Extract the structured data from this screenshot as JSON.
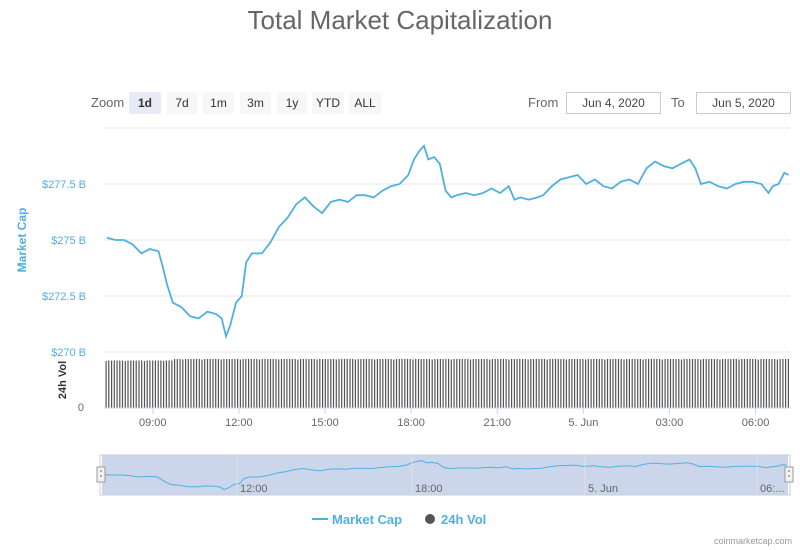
{
  "title": "Total Market Capitalization",
  "zoom": {
    "label": "Zoom",
    "buttons": [
      "1d",
      "7d",
      "1m",
      "3m",
      "1y",
      "YTD",
      "ALL"
    ],
    "active": "1d"
  },
  "range": {
    "from_label": "From",
    "from_value": "Jun 4, 2020",
    "to_label": "To",
    "to_value": "Jun 5, 2020"
  },
  "colors": {
    "line": "#4fb0e0",
    "volume_bar": "#555555",
    "navigator_fill": "#c3cfe8"
  },
  "legend": [
    {
      "label": "Market Cap",
      "icon": "line"
    },
    {
      "label": "24h Vol",
      "icon": "circle"
    }
  ],
  "navigator_labels": [
    "12:00",
    "18:00",
    "5. Jun",
    "06:..."
  ],
  "footer": "coinmarketcap.com",
  "chart_data": {
    "type": "line",
    "title": "Total Market Capitalization",
    "ylabel": "Market Cap",
    "ylabel_volume": "24h Vol",
    "y_unit": "B (USD)",
    "ylim": [
      270,
      280
    ],
    "yticks": [
      {
        "value": 270,
        "label": "$270 B"
      },
      {
        "value": 272.5,
        "label": "$272.5 B"
      },
      {
        "value": 275,
        "label": "$275 B"
      },
      {
        "value": 277.5,
        "label": "$277.5 B"
      }
    ],
    "volume_tick": "0",
    "x_unit": "hours since Jun 4 2020 00:00",
    "xlim": [
      7.3,
      31.2
    ],
    "xticks": [
      {
        "value": 9,
        "label": "09:00"
      },
      {
        "value": 12,
        "label": "12:00"
      },
      {
        "value": 15,
        "label": "15:00"
      },
      {
        "value": 18,
        "label": "18:00"
      },
      {
        "value": 21,
        "label": "21:00"
      },
      {
        "value": 24,
        "label": "5. Jun"
      },
      {
        "value": 27,
        "label": "03:00"
      },
      {
        "value": 30,
        "label": "06:00"
      }
    ],
    "series": [
      {
        "name": "Market Cap",
        "points": [
          [
            7.4,
            275.1
          ],
          [
            7.7,
            275.0
          ],
          [
            8.0,
            275.0
          ],
          [
            8.3,
            274.8
          ],
          [
            8.6,
            274.4
          ],
          [
            8.9,
            274.6
          ],
          [
            9.2,
            274.5
          ],
          [
            9.35,
            273.8
          ],
          [
            9.5,
            273.0
          ],
          [
            9.7,
            272.2
          ],
          [
            10.0,
            272.0
          ],
          [
            10.3,
            271.6
          ],
          [
            10.6,
            271.5
          ],
          [
            10.9,
            271.8
          ],
          [
            11.2,
            271.7
          ],
          [
            11.4,
            271.5
          ],
          [
            11.55,
            270.7
          ],
          [
            11.7,
            271.2
          ],
          [
            11.9,
            272.2
          ],
          [
            12.1,
            272.5
          ],
          [
            12.25,
            274.0
          ],
          [
            12.45,
            274.4
          ],
          [
            12.8,
            274.4
          ],
          [
            13.1,
            274.9
          ],
          [
            13.4,
            275.6
          ],
          [
            13.7,
            276.0
          ],
          [
            14.0,
            276.6
          ],
          [
            14.3,
            276.9
          ],
          [
            14.6,
            276.5
          ],
          [
            14.9,
            276.2
          ],
          [
            15.2,
            276.7
          ],
          [
            15.5,
            276.8
          ],
          [
            15.8,
            276.7
          ],
          [
            16.1,
            277.0
          ],
          [
            16.4,
            277.0
          ],
          [
            16.7,
            276.9
          ],
          [
            17.0,
            277.2
          ],
          [
            17.3,
            277.4
          ],
          [
            17.6,
            277.5
          ],
          [
            17.9,
            277.9
          ],
          [
            18.1,
            278.6
          ],
          [
            18.3,
            279.0
          ],
          [
            18.45,
            279.2
          ],
          [
            18.6,
            278.6
          ],
          [
            18.8,
            278.7
          ],
          [
            19.0,
            278.4
          ],
          [
            19.2,
            277.2
          ],
          [
            19.4,
            276.9
          ],
          [
            19.6,
            277.0
          ],
          [
            19.9,
            277.1
          ],
          [
            20.2,
            277.0
          ],
          [
            20.5,
            277.1
          ],
          [
            20.8,
            277.3
          ],
          [
            21.1,
            277.1
          ],
          [
            21.4,
            277.4
          ],
          [
            21.6,
            276.8
          ],
          [
            21.8,
            276.9
          ],
          [
            22.1,
            276.8
          ],
          [
            22.4,
            276.9
          ],
          [
            22.6,
            277.0
          ],
          [
            22.9,
            277.4
          ],
          [
            23.2,
            277.7
          ],
          [
            23.5,
            277.8
          ],
          [
            23.8,
            277.9
          ],
          [
            24.1,
            277.5
          ],
          [
            24.4,
            277.7
          ],
          [
            24.7,
            277.4
          ],
          [
            25.0,
            277.3
          ],
          [
            25.3,
            277.6
          ],
          [
            25.6,
            277.7
          ],
          [
            25.9,
            277.5
          ],
          [
            26.2,
            278.2
          ],
          [
            26.5,
            278.5
          ],
          [
            26.8,
            278.3
          ],
          [
            27.1,
            278.2
          ],
          [
            27.4,
            278.4
          ],
          [
            27.7,
            278.6
          ],
          [
            27.9,
            278.2
          ],
          [
            28.1,
            277.5
          ],
          [
            28.4,
            277.6
          ],
          [
            28.7,
            277.4
          ],
          [
            29.0,
            277.3
          ],
          [
            29.3,
            277.5
          ],
          [
            29.6,
            277.6
          ],
          [
            29.9,
            277.6
          ],
          [
            30.2,
            277.5
          ],
          [
            30.45,
            277.1
          ],
          [
            30.6,
            277.4
          ],
          [
            30.8,
            277.5
          ],
          [
            31.0,
            278.0
          ],
          [
            31.15,
            277.9
          ]
        ]
      },
      {
        "name": "24h Vol",
        "type": "bar",
        "note": "volume bars at near-constant level, slightly lower before 09:00"
      }
    ]
  }
}
